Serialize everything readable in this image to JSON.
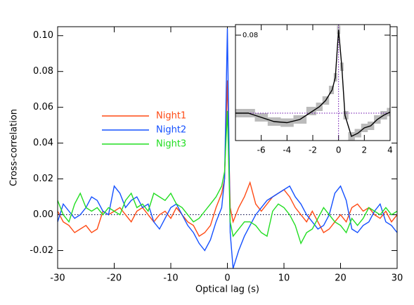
{
  "chart_data": [
    {
      "type": "line",
      "xlabel": "Optical lag (s)",
      "ylabel": "Cross-correlation",
      "xlim": [
        -30,
        30
      ],
      "xticks": [
        -30,
        -20,
        -10,
        0,
        10,
        20,
        30
      ],
      "ylim": [
        -0.03,
        0.105
      ],
      "yticks": [
        -0.02,
        {
          "value": 0,
          "label": "0.00"
        },
        0.02,
        0.04,
        0.06,
        0.08,
        {
          "value": 0.1,
          "label": "0.10"
        }
      ],
      "hline": 0,
      "x": [
        -30,
        -29,
        -28,
        -27,
        -26,
        -25,
        -24,
        -23,
        -22,
        -21,
        -20,
        -19,
        -18,
        -17,
        -16,
        -15,
        -14,
        -13,
        -12,
        -11,
        -10,
        -9,
        -8,
        -7,
        -6,
        -5,
        -4,
        -3,
        -2,
        -1,
        -0.5,
        0,
        0.5,
        1,
        2,
        3,
        4,
        5,
        6,
        7,
        8,
        9,
        10,
        11,
        12,
        13,
        14,
        15,
        16,
        17,
        18,
        19,
        20,
        21,
        22,
        23,
        24,
        25,
        26,
        27,
        28,
        29,
        30
      ],
      "series": [
        {
          "name": "Night1",
          "color": "#ff4a14",
          "values": [
            0.002,
            -0.004,
            -0.006,
            -0.01,
            -0.008,
            -0.006,
            -0.01,
            -0.008,
            0.002,
            0.0,
            0.002,
            0.004,
            0.0,
            -0.004,
            0.002,
            0.004,
            0.0,
            -0.004,
            0.0,
            0.002,
            -0.002,
            0.004,
            0.0,
            -0.004,
            -0.006,
            -0.012,
            -0.01,
            -0.006,
            0.004,
            0.012,
            0.02,
            0.075,
            0.004,
            -0.004,
            0.004,
            0.01,
            0.018,
            0.006,
            0.002,
            0.006,
            0.01,
            0.012,
            0.014,
            0.01,
            0.004,
            0.0,
            -0.004,
            0.002,
            -0.004,
            -0.01,
            -0.008,
            -0.004,
            0.0,
            -0.004,
            0.004,
            0.006,
            0.002,
            0.004,
            0.0,
            -0.002,
            0.002,
            -0.004,
            0.0
          ]
        },
        {
          "name": "Night2",
          "color": "#1450ff",
          "values": [
            -0.004,
            0.006,
            0.002,
            -0.002,
            0.0,
            0.004,
            0.01,
            0.008,
            0.002,
            0.0,
            0.016,
            0.012,
            0.004,
            0.008,
            0.01,
            0.004,
            0.006,
            -0.004,
            -0.008,
            -0.002,
            0.004,
            0.006,
            0.0,
            -0.006,
            -0.01,
            -0.016,
            -0.02,
            -0.014,
            -0.004,
            0.004,
            0.02,
            0.104,
            -0.01,
            -0.03,
            -0.02,
            -0.012,
            -0.006,
            0.0,
            0.004,
            0.008,
            0.01,
            0.012,
            0.014,
            0.016,
            0.01,
            0.006,
            0.0,
            -0.004,
            -0.008,
            -0.006,
            0.0,
            0.012,
            0.016,
            0.008,
            -0.008,
            -0.01,
            -0.006,
            -0.004,
            0.002,
            0.006,
            -0.004,
            -0.006,
            -0.01
          ]
        },
        {
          "name": "Night3",
          "color": "#22dd22",
          "values": [
            0.008,
            0.0,
            -0.004,
            0.006,
            0.012,
            0.004,
            0.002,
            0.004,
            0.0,
            0.004,
            0.002,
            0.0,
            0.008,
            0.012,
            0.004,
            0.006,
            0.002,
            0.012,
            0.01,
            0.008,
            0.012,
            0.006,
            0.004,
            0.0,
            -0.004,
            -0.002,
            0.002,
            0.006,
            0.01,
            0.016,
            0.024,
            0.058,
            -0.004,
            -0.012,
            -0.008,
            -0.004,
            -0.004,
            -0.006,
            -0.01,
            -0.012,
            0.002,
            0.006,
            0.004,
            0.0,
            -0.006,
            -0.016,
            -0.01,
            -0.008,
            -0.002,
            0.004,
            0.0,
            -0.004,
            -0.006,
            -0.01,
            -0.002,
            -0.006,
            -0.002,
            0.004,
            0.002,
            0.0,
            0.004,
            0.0,
            0.002
          ]
        }
      ]
    },
    {
      "type": "band-line",
      "xlim": [
        -8,
        4
      ],
      "xticks": [
        -6,
        -4,
        -2,
        0,
        2,
        4
      ],
      "ylim": [
        -0.02,
        0.09
      ],
      "yticks": [
        0.08
      ],
      "hline": 0.006,
      "vline": 0,
      "color": "#000000",
      "band_color": "#bbbbbb",
      "x": [
        -8,
        -7,
        -6,
        -5,
        -4,
        -3,
        -2,
        -1.5,
        -1,
        -0.5,
        -0.25,
        0,
        0.25,
        0.5,
        1,
        1.5,
        2,
        2.5,
        3,
        3.5,
        4
      ],
      "values": [
        0.006,
        0.006,
        0.002,
        -0.002,
        -0.003,
        0.0,
        0.008,
        0.012,
        0.018,
        0.028,
        0.04,
        0.085,
        0.05,
        0.004,
        -0.016,
        -0.013,
        -0.008,
        -0.006,
        0.0,
        0.004,
        0.007
      ],
      "errors": [
        0.004,
        0.004,
        0.004,
        0.004,
        0.004,
        0.004,
        0.004,
        0.004,
        0.004,
        0.004,
        0.004,
        0.004,
        0.004,
        0.004,
        0.004,
        0.004,
        0.004,
        0.004,
        0.004,
        0.004,
        0.004
      ]
    }
  ]
}
